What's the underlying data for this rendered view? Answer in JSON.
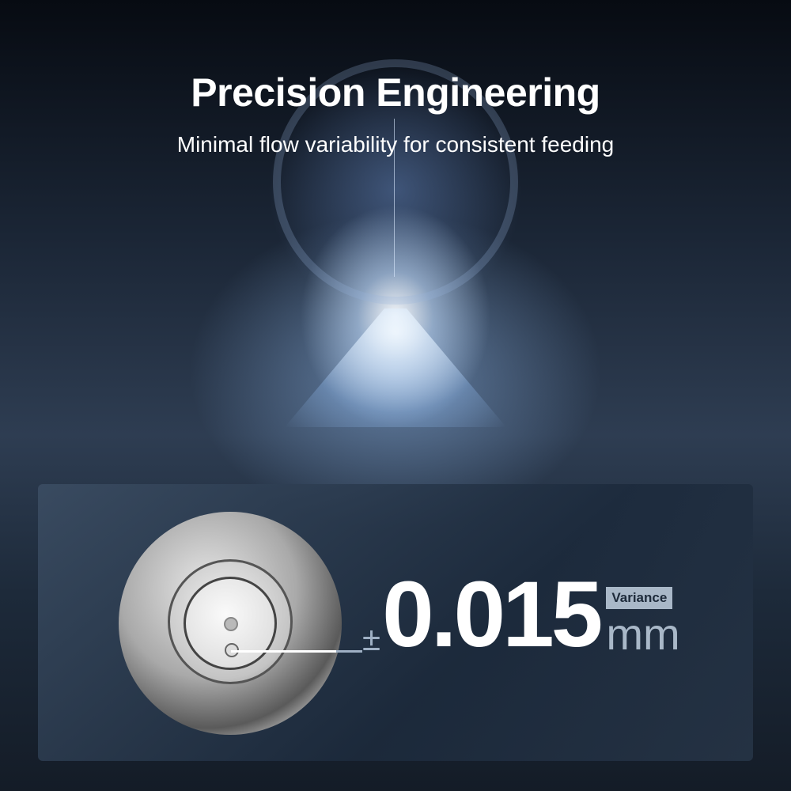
{
  "header": {
    "title": "Precision Engineering",
    "subtitle": "Minimal flow variability for consistent feeding"
  },
  "spec": {
    "prefix": "±",
    "value": "0.015",
    "unit": "mm",
    "badge": "Variance"
  },
  "colors": {
    "panel": "#1d2a3a",
    "badge": "#a9b8c8",
    "text": "#ffffff"
  }
}
